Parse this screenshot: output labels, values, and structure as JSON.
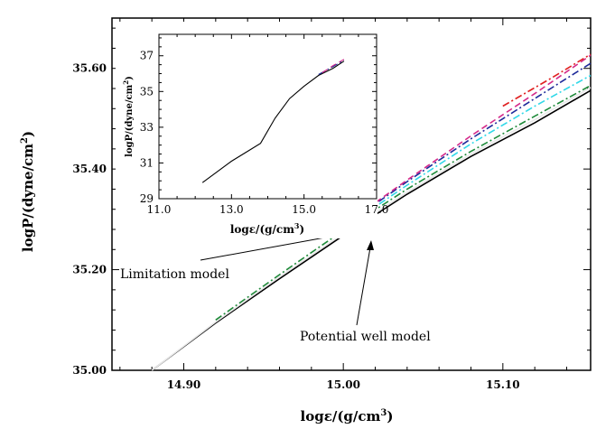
{
  "chart_data": [
    {
      "type": "line",
      "xlabel_main": "logε/(g/cm",
      "xlabel_sup": "3",
      "xlabel_tail": ")",
      "ylabel_main": "logP/(dyne/cm",
      "ylabel_sup": "2",
      "ylabel_tail": ")",
      "xlim": [
        14.855,
        15.155
      ],
      "ylim": [
        35.0,
        35.7
      ],
      "xticks": [
        14.9,
        15.0,
        15.1
      ],
      "xtick_labels": [
        "14.90",
        "15.00",
        "15.10"
      ],
      "yticks": [
        35.0,
        35.2,
        35.4,
        35.6
      ],
      "ytick_labels": [
        "35.00",
        "35.20",
        "35.40",
        "35.60"
      ],
      "grid": false,
      "series": [
        {
          "color": "#000000",
          "style": "solid",
          "x": [
            14.88,
            14.92,
            14.96,
            15.0,
            15.04,
            15.08,
            15.12,
            15.155
          ],
          "y": [
            35.0,
            35.094,
            35.182,
            35.268,
            35.35,
            35.425,
            35.492,
            35.556
          ]
        },
        {
          "color": "#e8e8e8",
          "style": "solid",
          "x": [
            14.88,
            14.92,
            14.96,
            15.0,
            15.04,
            15.08,
            15.12,
            15.155
          ],
          "y": [
            35.0,
            35.096,
            35.186,
            35.272,
            35.354,
            35.43,
            35.498,
            35.562
          ]
        },
        {
          "color": "#1f8a3a",
          "style": "dashdot",
          "x": [
            14.92,
            14.96,
            15.0,
            15.04,
            15.08,
            15.12,
            15.155
          ],
          "y": [
            35.1,
            35.19,
            35.278,
            35.36,
            35.435,
            35.505,
            35.566
          ]
        },
        {
          "color": "#30d8e8",
          "style": "dashdot",
          "x": [
            15.0,
            15.04,
            15.08,
            15.12,
            15.155
          ],
          "y": [
            35.282,
            35.368,
            35.45,
            35.525,
            35.586
          ]
        },
        {
          "color": "#1e2a9a",
          "style": "dashdot",
          "x": [
            15.0,
            15.04,
            15.08,
            15.12,
            15.155
          ],
          "y": [
            35.286,
            35.375,
            35.46,
            35.54,
            35.61
          ]
        },
        {
          "color": "#d42a8a",
          "style": "dashed",
          "x": [
            15.0,
            15.04,
            15.08,
            15.12,
            15.155
          ],
          "y": [
            35.288,
            35.378,
            35.466,
            35.55,
            35.626
          ]
        },
        {
          "color": "#e02020",
          "style": "dashdot",
          "x": [
            15.1,
            15.13,
            15.155
          ],
          "y": [
            35.525,
            35.58,
            35.628
          ]
        }
      ],
      "annotations": [
        {
          "text": "Limitation model",
          "arrow_to_x": 15.01,
          "arrow_to_y": 35.28
        },
        {
          "text": "Potential well model",
          "arrow_to_x": 15.022,
          "arrow_to_y": 35.265
        }
      ]
    },
    {
      "type": "line",
      "xlabel_main": "logε/(g/cm",
      "xlabel_sup": "3",
      "xlabel_tail": ")",
      "ylabel_main": "logP/(dyne/cm",
      "ylabel_sup": "2",
      "ylabel_tail": ")",
      "xlim": [
        11.0,
        17.0
      ],
      "ylim": [
        29,
        38.2
      ],
      "xticks": [
        11.0,
        13.0,
        15.0,
        17.0
      ],
      "xtick_labels": [
        "11.0",
        "13.0",
        "15.0",
        "17.0"
      ],
      "yticks": [
        29,
        31,
        33,
        35,
        37
      ],
      "ytick_labels": [
        "29",
        "31",
        "33",
        "35",
        "37"
      ],
      "grid": false,
      "series": [
        {
          "color": "#000000",
          "style": "solid",
          "x": [
            12.2,
            12.6,
            13.0,
            13.4,
            13.8,
            14.2,
            14.6,
            15.0,
            15.4,
            15.8,
            16.1
          ],
          "y": [
            29.9,
            30.5,
            31.1,
            31.6,
            32.1,
            33.5,
            34.6,
            35.3,
            35.9,
            36.3,
            36.7
          ]
        },
        {
          "color": "#1e2a9a",
          "style": "dashdot",
          "x": [
            15.4,
            15.8,
            16.1
          ],
          "y": [
            35.95,
            36.4,
            36.75
          ]
        },
        {
          "color": "#d42a8a",
          "style": "dashed",
          "x": [
            15.5,
            15.8,
            16.1
          ],
          "y": [
            36.05,
            36.45,
            36.8
          ]
        }
      ]
    }
  ]
}
